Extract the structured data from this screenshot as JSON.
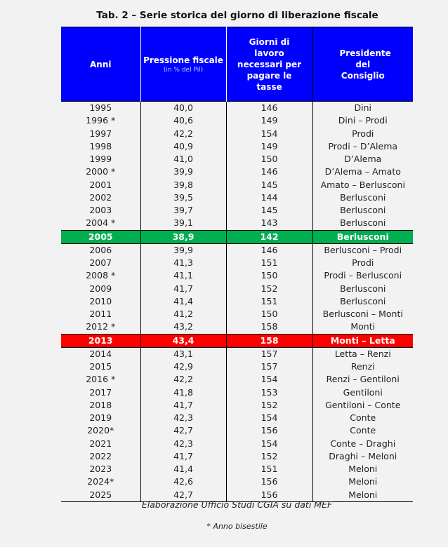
{
  "title": "Tab. 2 – Serie storica del giorno di liberazione fiscale",
  "headers": {
    "anni": "Anni",
    "pressione": "Pressione fiscale",
    "pressione_sub": "(in % del Pil)",
    "giorni": "Giorni di lavoro necessari per pagare le tasse",
    "presidente": "Presidente del Consiglio"
  },
  "highlight_colors": {
    "green": "#00b050",
    "red": "#ff0000",
    "header": "#0000ff"
  },
  "rows": [
    {
      "anno": "1995",
      "pressione": "40,0",
      "giorni": "146",
      "presidente": "Dini"
    },
    {
      "anno": "1996 *",
      "pressione": "40,6",
      "giorni": "149",
      "presidente": "Dini – Prodi"
    },
    {
      "anno": "1997",
      "pressione": "42,2",
      "giorni": "154",
      "presidente": "Prodi"
    },
    {
      "anno": "1998",
      "pressione": "40,9",
      "giorni": "149",
      "presidente": "Prodi – D’Alema"
    },
    {
      "anno": "1999",
      "pressione": "41,0",
      "giorni": "150",
      "presidente": "D’Alema"
    },
    {
      "anno": "2000 *",
      "pressione": "39,9",
      "giorni": "146",
      "presidente": "D’Alema – Amato"
    },
    {
      "anno": "2001",
      "pressione": "39,8",
      "giorni": "145",
      "presidente": "Amato – Berlusconi"
    },
    {
      "anno": "2002",
      "pressione": "39,5",
      "giorni": "144",
      "presidente": "Berlusconi"
    },
    {
      "anno": "2003",
      "pressione": "39,7",
      "giorni": "145",
      "presidente": "Berlusconi"
    },
    {
      "anno": "2004 *",
      "pressione": "39,1",
      "giorni": "143",
      "presidente": "Berlusconi"
    },
    {
      "anno": "2005",
      "pressione": "38,9",
      "giorni": "142",
      "presidente": "Berlusconi",
      "highlight": "green"
    },
    {
      "anno": "2006",
      "pressione": "39,9",
      "giorni": "146",
      "presidente": "Berlusconi – Prodi"
    },
    {
      "anno": "2007",
      "pressione": "41,3",
      "giorni": "151",
      "presidente": "Prodi"
    },
    {
      "anno": "2008 *",
      "pressione": "41,1",
      "giorni": "150",
      "presidente": "Prodi – Berlusconi"
    },
    {
      "anno": "2009",
      "pressione": "41,7",
      "giorni": "152",
      "presidente": "Berlusconi"
    },
    {
      "anno": "2010",
      "pressione": "41,4",
      "giorni": "151",
      "presidente": "Berlusconi"
    },
    {
      "anno": "2011",
      "pressione": "41,2",
      "giorni": "150",
      "presidente": "Berlusconi – Monti"
    },
    {
      "anno": "2012 *",
      "pressione": "43,2",
      "giorni": "158",
      "presidente": "Monti"
    },
    {
      "anno": "2013",
      "pressione": "43,4",
      "giorni": "158",
      "presidente": "Monti – Letta",
      "highlight": "red"
    },
    {
      "anno": "2014",
      "pressione": "43,1",
      "giorni": "157",
      "presidente": "Letta – Renzi"
    },
    {
      "anno": "2015",
      "pressione": "42,9",
      "giorni": "157",
      "presidente": "Renzi"
    },
    {
      "anno": "2016 *",
      "pressione": "42,2",
      "giorni": "154",
      "presidente": "Renzi – Gentiloni"
    },
    {
      "anno": "2017",
      "pressione": "41,8",
      "giorni": "153",
      "presidente": "Gentiloni"
    },
    {
      "anno": "2018",
      "pressione": "41,7",
      "giorni": "152",
      "presidente": "Gentiloni – Conte"
    },
    {
      "anno": "2019",
      "pressione": "42,3",
      "giorni": "154",
      "presidente": "Conte"
    },
    {
      "anno": "2020*",
      "pressione": "42,7",
      "giorni": "156",
      "presidente": "Conte"
    },
    {
      "anno": "2021",
      "pressione": "42,3",
      "giorni": "154",
      "presidente": "Conte – Draghi"
    },
    {
      "anno": "2022",
      "pressione": "41,7",
      "giorni": "152",
      "presidente": "Draghi – Meloni"
    },
    {
      "anno": "2023",
      "pressione": "41,4",
      "giorni": "151",
      "presidente": "Meloni"
    },
    {
      "anno": "2024*",
      "pressione": "42,6",
      "giorni": "156",
      "presidente": "Meloni"
    },
    {
      "anno": "2025",
      "pressione": "42,7",
      "giorni": "156",
      "presidente": "Meloni"
    }
  ],
  "source": "Elaborazione Ufficio Studi CGIA su dati MEF",
  "note": "* Anno bisestile"
}
